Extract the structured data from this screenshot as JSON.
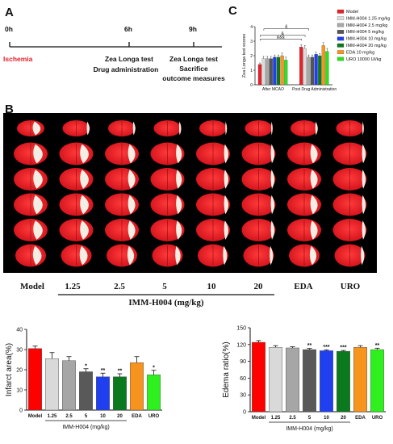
{
  "panel_a": {
    "letter": "A",
    "times": [
      "0h",
      "6h",
      "9h"
    ],
    "label_0h": "Ischemia",
    "label_6h": [
      "Zea Longa test",
      "Drug administration"
    ],
    "label_9h": [
      "Zea Longa test",
      "Sacrifice",
      "outcome measures"
    ],
    "colors": {
      "ischemia": "#e8202a"
    }
  },
  "panel_b": {
    "letter": "B",
    "dose_labels": [
      "Model",
      "1.25",
      "2.5",
      "5",
      "10",
      "20",
      "EDA",
      "URO"
    ],
    "dose_group_label": "IMM-H004 (mg/kg)",
    "rows": 6,
    "columns": 8
  },
  "panel_c": {
    "letter": "C"
  },
  "chart_data": [
    {
      "type": "bar",
      "panel": "C",
      "ylabel": "Zea Longa test scores",
      "ylim": [
        0,
        4
      ],
      "yticks": [
        0,
        1,
        2,
        3,
        4
      ],
      "categories": [
        "After MCAO",
        "Post Drug Administration"
      ],
      "series": [
        {
          "name": "Model",
          "color": "#e8202a",
          "values": [
            1.4,
            2.6
          ],
          "errors": [
            0.1,
            0.15
          ]
        },
        {
          "name": "IMM-H004 1.25 mg/kg",
          "color": "#dcdcdc",
          "values": [
            1.8,
            2.5
          ],
          "errors": [
            0.15,
            0.2
          ]
        },
        {
          "name": "IMM-H004 2.5 mg/kg",
          "color": "#a8a8a8",
          "values": [
            1.8,
            1.9
          ],
          "errors": [
            0.15,
            0.15
          ]
        },
        {
          "name": "IMM-H004 5 mg/kg",
          "color": "#555555",
          "values": [
            1.8,
            1.9
          ],
          "errors": [
            0.15,
            0.15
          ]
        },
        {
          "name": "IMM-H004 10 mg/kg",
          "color": "#1f3ff0",
          "values": [
            1.9,
            2.1
          ],
          "errors": [
            0.15,
            0.15
          ]
        },
        {
          "name": "IMM-H004 20 mg/kg",
          "color": "#0b7a1e",
          "values": [
            1.9,
            2.0
          ],
          "errors": [
            0.15,
            0.15
          ]
        },
        {
          "name": "EDA 10 mg/kg",
          "color": "#f7941d",
          "values": [
            2.0,
            2.7
          ],
          "errors": [
            0.2,
            0.2
          ]
        },
        {
          "name": "URO 10000 UI/kg",
          "color": "#2ee01e",
          "values": [
            1.7,
            2.3
          ],
          "errors": [
            0.2,
            0.2
          ]
        }
      ],
      "annotations": [
        "&&&",
        "&",
        "&"
      ],
      "legend_position": "right"
    },
    {
      "type": "bar",
      "panel": "bottom-left",
      "ylabel": "Infarct area(%)",
      "xlabel": "IMM-H004 (mg/kg)",
      "ylim": [
        0,
        40
      ],
      "yticks": [
        0,
        10,
        20,
        30,
        40
      ],
      "categories": [
        "Model",
        "1.25",
        "2.5",
        "5",
        "10",
        "20",
        "EDA",
        "URO"
      ],
      "values": [
        30.5,
        25.5,
        24.5,
        19,
        16.5,
        16.5,
        23.5,
        17.5
      ],
      "errors": [
        1.2,
        3.0,
        2.0,
        1.5,
        1.8,
        1.5,
        3.0,
        2.2
      ],
      "colors": [
        "#ff0000",
        "#d9d9d9",
        "#a6a6a6",
        "#595959",
        "#1f3ff0",
        "#0b7a1e",
        "#f7941d",
        "#2ef01e"
      ],
      "significance": [
        "",
        "",
        "",
        "*",
        "**",
        "**",
        "",
        "*"
      ]
    },
    {
      "type": "bar",
      "panel": "bottom-right",
      "ylabel": "Edema ratio(%)",
      "xlabel": "IMM-H004 (mg/kg)",
      "ylim": [
        0,
        150
      ],
      "yticks": [
        0,
        30,
        60,
        90,
        120,
        150
      ],
      "categories": [
        "Model",
        "1.25",
        "2.5",
        "5",
        "10",
        "20",
        "EDA",
        "URO"
      ],
      "values": [
        124,
        115,
        114,
        111,
        109,
        108,
        115,
        111
      ],
      "errors": [
        3,
        3,
        2,
        2,
        1.5,
        1.5,
        3,
        2.5
      ],
      "colors": [
        "#ff0000",
        "#d9d9d9",
        "#a6a6a6",
        "#595959",
        "#1f3ff0",
        "#0b7a1e",
        "#f7941d",
        "#2ef01e"
      ],
      "significance": [
        "",
        "",
        "",
        "**",
        "***",
        "***",
        "",
        "**"
      ]
    }
  ]
}
